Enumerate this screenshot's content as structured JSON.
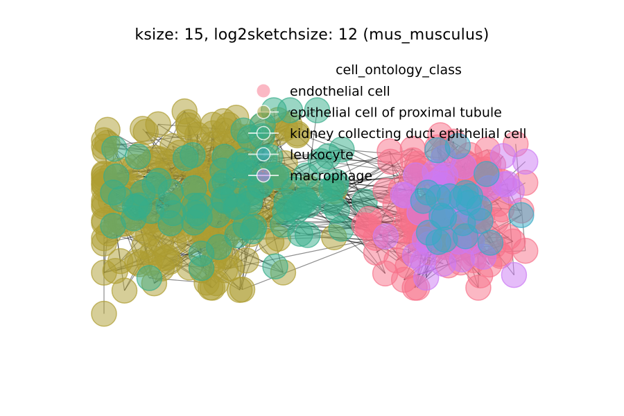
{
  "chart_data": {
    "type": "scatter",
    "subtype": "network-graph",
    "title": "ksize: 15, log2sketchsize: 12 (mus_musculus)",
    "xlabel": "",
    "ylabel": "",
    "axes_visible": false,
    "grid": false,
    "legend": {
      "title": "cell_ontology_class",
      "placement": "top-right",
      "entries": [
        {
          "label": "endothelial cell",
          "color": "#f77189"
        },
        {
          "label": "epithelial cell of proximal tubule",
          "color": "#ae9d31"
        },
        {
          "label": "kidney collecting duct epithelial cell",
          "color": "#36ad8a"
        },
        {
          "label": "leukocyte",
          "color": "#38a9c5"
        },
        {
          "label": "macrophage",
          "color": "#cc7af4"
        }
      ]
    },
    "edge_color": "#000000",
    "node_alpha": 0.5,
    "clusters": [
      {
        "name": "epithelial cell of proximal tubule",
        "color": "#ae9d31",
        "center": [
          -0.55,
          0.05
        ],
        "spread": [
          0.28,
          0.3
        ],
        "count": 200
      },
      {
        "name": "kidney collecting duct epithelial cell",
        "color": "#36ad8a",
        "center": [
          -0.35,
          0.08
        ],
        "spread": [
          0.25,
          0.22
        ],
        "count": 90
      },
      {
        "name": "endothelial cell",
        "color": "#f77189",
        "center": [
          0.55,
          -0.02
        ],
        "spread": [
          0.16,
          0.2
        ],
        "count": 140
      },
      {
        "name": "macrophage",
        "color": "#cc7af4",
        "center": [
          0.6,
          -0.05
        ],
        "spread": [
          0.14,
          0.16
        ],
        "count": 35
      },
      {
        "name": "leukocyte",
        "color": "#38a9c5",
        "center": [
          0.62,
          0.0
        ],
        "spread": [
          0.15,
          0.18
        ],
        "count": 22
      }
    ]
  }
}
